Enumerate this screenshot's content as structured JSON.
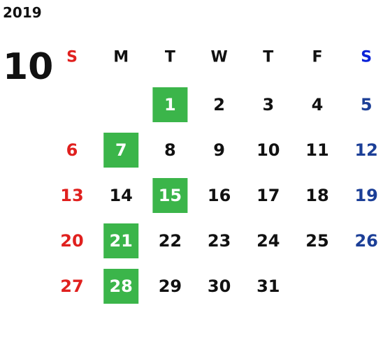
{
  "calendar": {
    "year": "2019",
    "month": "10",
    "weekdays": [
      "S",
      "M",
      "T",
      "W",
      "T",
      "F",
      "S"
    ],
    "weeks": [
      [
        null,
        null,
        1,
        2,
        3,
        4,
        5
      ],
      [
        6,
        7,
        8,
        9,
        10,
        11,
        12
      ],
      [
        13,
        14,
        15,
        16,
        17,
        18,
        19
      ],
      [
        20,
        21,
        22,
        23,
        24,
        25,
        26
      ],
      [
        27,
        28,
        29,
        30,
        31,
        null,
        null
      ]
    ],
    "highlighted": [
      1,
      7,
      15,
      21,
      28
    ],
    "highlight_color": "#3bb54a",
    "sunday_color": "#e0201e",
    "saturday_color": "#1c3f97",
    "weekday_color": "#111111"
  }
}
